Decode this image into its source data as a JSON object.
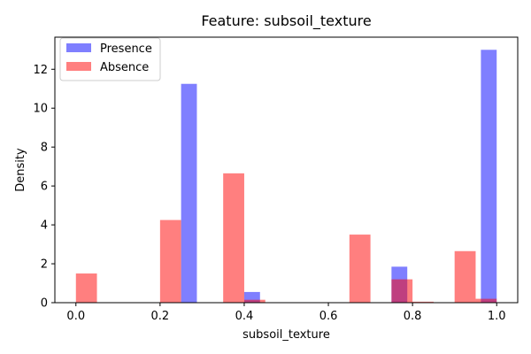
{
  "chart_data": {
    "type": "bar",
    "title": "Feature: subsoil_texture",
    "xlabel": "subsoil_texture",
    "ylabel": "Density",
    "xlim": [
      -0.05,
      1.05
    ],
    "ylim": [
      0,
      13.65
    ],
    "xticks": [
      0.0,
      0.2,
      0.4,
      0.6,
      0.8,
      1.0
    ],
    "xtick_labels": [
      "0.0",
      "0.2",
      "0.4",
      "0.6",
      "0.8",
      "1.0"
    ],
    "yticks": [
      0,
      2,
      4,
      6,
      8,
      10,
      12
    ],
    "ytick_labels": [
      "0",
      "2",
      "4",
      "6",
      "8",
      "10",
      "12"
    ],
    "grid": false,
    "legend_position": "top-left",
    "series": [
      {
        "name": "Presence",
        "color": "#0000ff",
        "opacity": 0.5,
        "bins": [
          {
            "x0": 0.25,
            "x1": 0.2875,
            "value": 11.25
          },
          {
            "x0": 0.4,
            "x1": 0.4375,
            "value": 0.55
          },
          {
            "x0": 0.75,
            "x1": 0.7875,
            "value": 1.85
          },
          {
            "x0": 0.9625,
            "x1": 1.0,
            "value": 13.0
          }
        ]
      },
      {
        "name": "Absence",
        "color": "#ff0000",
        "opacity": 0.5,
        "bins": [
          {
            "x0": 0.0,
            "x1": 0.05,
            "value": 1.5
          },
          {
            "x0": 0.2,
            "x1": 0.25,
            "value": 4.25
          },
          {
            "x0": 0.35,
            "x1": 0.4,
            "value": 6.65
          },
          {
            "x0": 0.4,
            "x1": 0.45,
            "value": 0.15
          },
          {
            "x0": 0.65,
            "x1": 0.7,
            "value": 3.5
          },
          {
            "x0": 0.75,
            "x1": 0.8,
            "value": 1.2
          },
          {
            "x0": 0.8,
            "x1": 0.85,
            "value": 0.05
          },
          {
            "x0": 0.9,
            "x1": 0.95,
            "value": 2.65
          },
          {
            "x0": 0.95,
            "x1": 1.0,
            "value": 0.2
          }
        ]
      }
    ]
  }
}
